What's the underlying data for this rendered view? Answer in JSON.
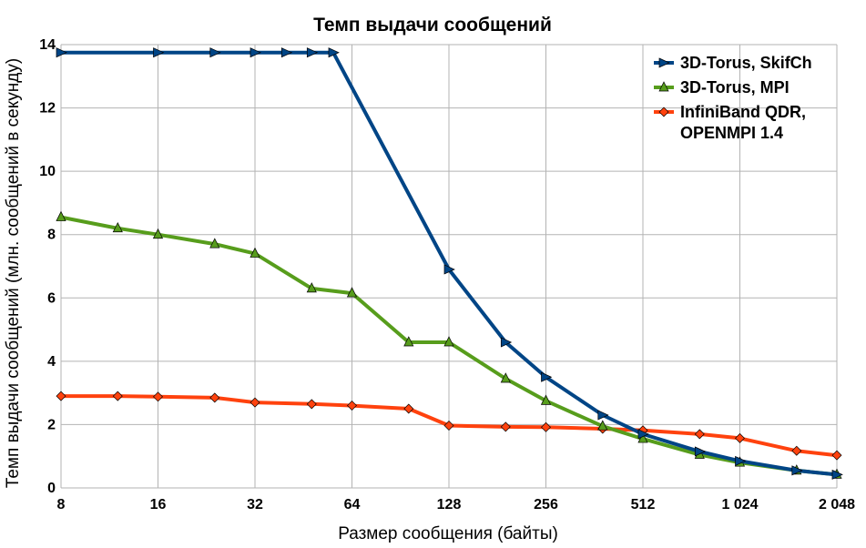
{
  "chart_data": {
    "type": "line",
    "title": "Темп выдачи сообщений",
    "xlabel": "Размер сообщения (байты)",
    "ylabel": "Темп выдачи сообщений (млн. сообщений в секунду)",
    "x_scale": "log2",
    "xlim": [
      8,
      2048
    ],
    "ylim": [
      0,
      14
    ],
    "x_ticks": [
      8,
      16,
      32,
      64,
      128,
      256,
      512,
      1024,
      2048
    ],
    "x_tick_labels": [
      "8",
      "16",
      "32",
      "64",
      "128",
      "256",
      "512",
      "1 024",
      "2 048"
    ],
    "y_ticks": [
      0,
      2,
      4,
      6,
      8,
      10,
      12,
      14
    ],
    "y_tick_labels": [
      "0",
      "2",
      "4",
      "6",
      "8",
      "10",
      "12",
      "14"
    ],
    "grid": true,
    "legend_position": "top-right",
    "series": [
      {
        "name": "3D-Torus, SkifCh",
        "color": "#004586",
        "marker": "triangle-right",
        "x": [
          8,
          16,
          24,
          32,
          40,
          48,
          56,
          128,
          192,
          256,
          384,
          512,
          768,
          1024,
          1536,
          2048
        ],
        "y": [
          13.75,
          13.75,
          13.75,
          13.75,
          13.75,
          13.75,
          13.75,
          6.9,
          4.6,
          3.5,
          2.3,
          1.7,
          1.15,
          0.85,
          0.55,
          0.42
        ]
      },
      {
        "name": "3D-Torus, MPI",
        "color": "#579d1c",
        "marker": "triangle-up",
        "x": [
          8,
          12,
          16,
          24,
          32,
          48,
          64,
          96,
          128,
          192,
          256,
          384,
          512,
          768,
          1024,
          1536,
          2048
        ],
        "y": [
          8.55,
          8.2,
          8.0,
          7.7,
          7.4,
          6.3,
          6.15,
          4.6,
          4.6,
          3.45,
          2.75,
          1.95,
          1.55,
          1.05,
          0.8,
          0.55,
          0.42
        ]
      },
      {
        "name": "InfiniBand QDR,\nOPENMPI 1.4",
        "name_lines": [
          "InfiniBand QDR,",
          "OPENMPI 1.4"
        ],
        "color": "#ff420e",
        "marker": "diamond",
        "x": [
          8,
          12,
          16,
          24,
          32,
          48,
          64,
          96,
          128,
          192,
          256,
          384,
          512,
          768,
          1024,
          1536,
          2048
        ],
        "y": [
          2.9,
          2.9,
          2.88,
          2.85,
          2.7,
          2.65,
          2.6,
          2.5,
          1.97,
          1.93,
          1.92,
          1.87,
          1.82,
          1.7,
          1.57,
          1.17,
          1.03
        ]
      }
    ]
  }
}
